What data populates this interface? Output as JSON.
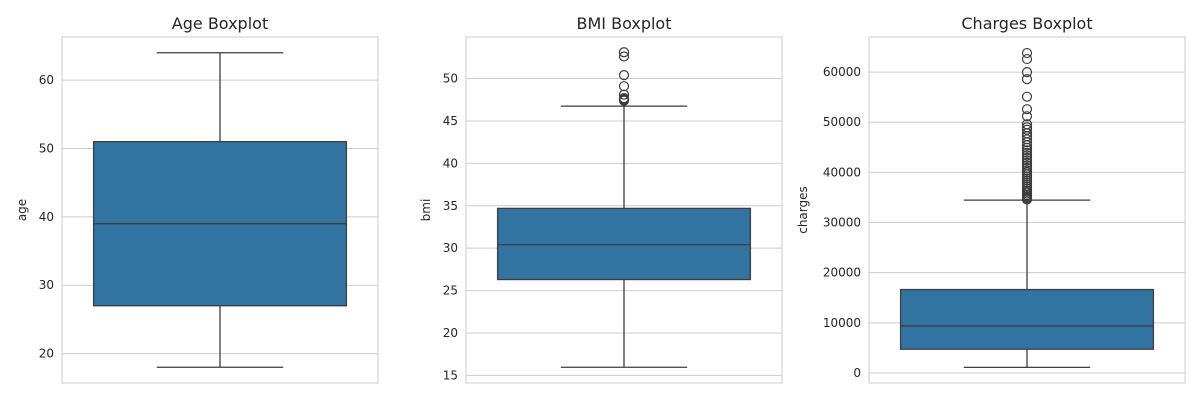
{
  "figure": {
    "background": "#ffffff",
    "box_color": "#3274a1",
    "line_color": "#3d3d3d",
    "grid_color": "#cccccc"
  },
  "chart_data": [
    {
      "type": "boxplot",
      "title": "Age Boxplot",
      "xlabel": "",
      "ylabel": "age",
      "ylim": [
        15.7,
        66.3
      ],
      "yticks": [
        20,
        30,
        40,
        50,
        60
      ],
      "grid": true,
      "box": {
        "whisker_low": 18,
        "q1": 27,
        "median": 39,
        "q3": 51,
        "whisker_high": 64
      },
      "outliers": []
    },
    {
      "type": "boxplot",
      "title": "BMI Boxplot",
      "xlabel": "",
      "ylabel": "bmi",
      "ylim": [
        14.1,
        54.9
      ],
      "yticks": [
        15,
        20,
        25,
        30,
        35,
        40,
        45,
        50
      ],
      "grid": true,
      "box": {
        "whisker_low": 15.96,
        "q1": 26.3,
        "median": 30.4,
        "q3": 34.69,
        "whisker_high": 46.75
      },
      "outliers": [
        47.4,
        47.5,
        47.6,
        47.7,
        48.1,
        49.1,
        50.4,
        52.6,
        53.1
      ]
    },
    {
      "type": "boxplot",
      "title": "Charges Boxplot",
      "xlabel": "",
      "ylabel": "charges",
      "ylim": [
        -2000,
        67000
      ],
      "yticks": [
        0,
        10000,
        20000,
        30000,
        40000,
        50000,
        60000
      ],
      "grid": true,
      "box": {
        "whisker_low": 1122,
        "q1": 4740,
        "median": 9382,
        "q3": 16640,
        "whisker_high": 34472
      },
      "outliers": [
        34600,
        34800,
        35000,
        35200,
        35500,
        35800,
        36100,
        36400,
        36800,
        37200,
        37600,
        38000,
        38400,
        38800,
        39200,
        39600,
        40000,
        40400,
        40900,
        41400,
        41900,
        42400,
        42900,
        43400,
        43900,
        44400,
        44900,
        45400,
        46000,
        46600,
        47200,
        47800,
        48500,
        49000,
        49600,
        51200,
        52600,
        55100,
        58600,
        60000,
        62600,
        63800
      ]
    }
  ]
}
